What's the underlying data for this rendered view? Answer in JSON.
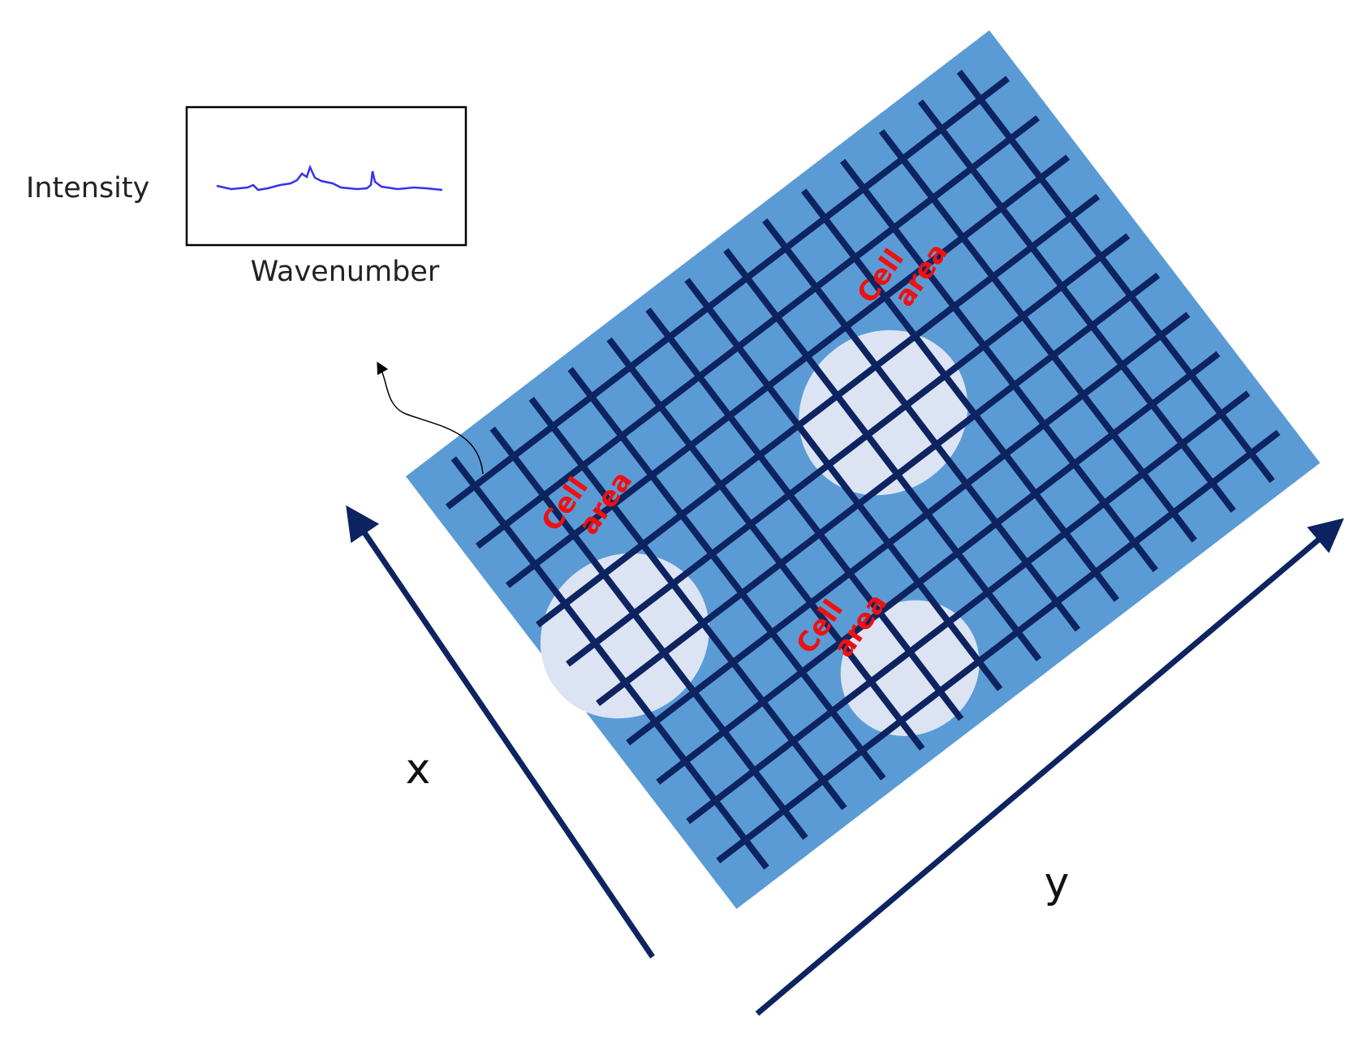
{
  "spectrum": {
    "y_label": "Intensity",
    "x_label": "Wavenumber"
  },
  "cells": [
    {
      "lines": [
        "Cell",
        "area"
      ]
    },
    {
      "lines": [
        "Cell",
        "area"
      ]
    },
    {
      "lines": [
        "Cell",
        "area"
      ]
    }
  ],
  "axes": {
    "x": "x",
    "y": "y"
  }
}
